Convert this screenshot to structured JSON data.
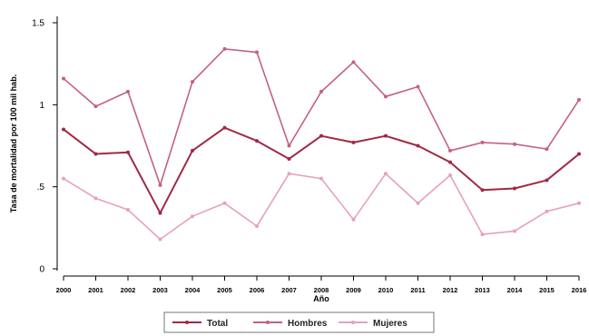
{
  "chart_data": {
    "type": "line",
    "title": "",
    "xlabel": "Año",
    "ylabel": "Tasa de mortalidad por 100 mil hab.",
    "x": [
      "2000",
      "2001",
      "2002",
      "2003",
      "2004",
      "2005",
      "2006",
      "2007",
      "2008",
      "2009",
      "2010",
      "2011",
      "2012",
      "2013",
      "2014",
      "2015",
      "2016"
    ],
    "y_ticks": [
      0,
      0.5,
      1,
      1.5
    ],
    "y_tick_labels": [
      "0",
      ".5",
      "1",
      "1.5"
    ],
    "ylim": [
      0,
      1.55
    ],
    "grid": false,
    "legend_position": "bottom",
    "series": [
      {
        "name": "Total",
        "color": "#9e2a45",
        "marker": true,
        "values": [
          0.85,
          0.7,
          0.71,
          0.34,
          0.72,
          0.86,
          0.78,
          0.67,
          0.81,
          0.77,
          0.81,
          0.75,
          0.65,
          0.48,
          0.49,
          0.54,
          0.7
        ]
      },
      {
        "name": "Hombres",
        "color": "#c4627c",
        "marker": true,
        "values": [
          1.16,
          0.99,
          1.08,
          0.51,
          1.14,
          1.34,
          1.32,
          0.75,
          1.08,
          1.26,
          1.05,
          1.11,
          0.72,
          0.77,
          0.76,
          0.73,
          1.03
        ]
      },
      {
        "name": "Mujeres",
        "color": "#e6a3b3",
        "marker": true,
        "values": [
          0.55,
          0.43,
          0.36,
          0.18,
          0.32,
          0.4,
          0.26,
          0.58,
          0.55,
          0.3,
          0.58,
          0.4,
          0.57,
          0.21,
          0.23,
          0.35,
          0.4
        ]
      }
    ]
  }
}
